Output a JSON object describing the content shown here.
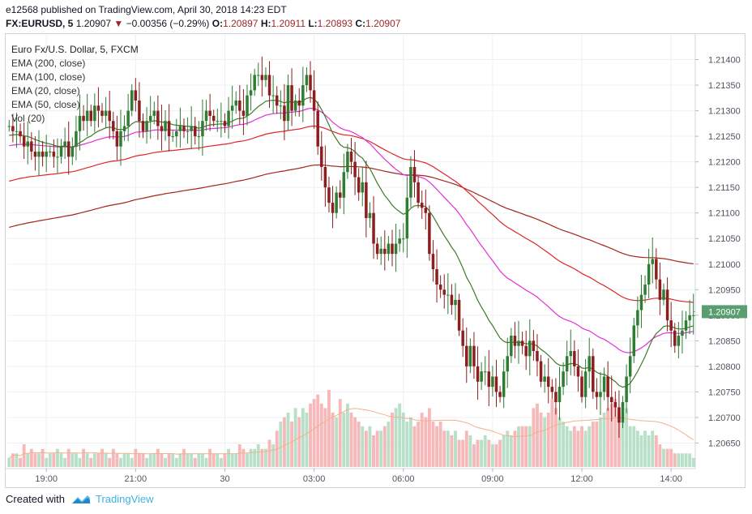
{
  "header": {
    "publisher_line": "e12568 published on TradingView.com, April 30, 2018 14:23 EDT",
    "symbol": "FX:EURUSD, 5",
    "last": "1.20907",
    "change_arrow": "▼",
    "change": "−0.00356 (−0.29%)",
    "o_label": "O:",
    "o": "1.20897",
    "h_label": "H:",
    "h": "1.20911",
    "l_label": "L:",
    "l": "1.20893",
    "c_label": "C:",
    "c": "1.20907"
  },
  "legend": {
    "title": "Euro Fx/U.S. Dollar, 5, FXCM",
    "items": [
      "EMA (200, close)",
      "EMA (100, close)",
      "EMA (20, close)",
      "EMA (50, close)",
      "Vol (20)"
    ]
  },
  "footer": {
    "created_with": "Created with",
    "brand": "TradingView"
  },
  "colors": {
    "up": "#2e7d32",
    "down": "#8b1e1e",
    "ema200": "#a5261a",
    "ema100": "#e0262a",
    "ema20": "#3f7a2a",
    "ema50": "#e52fd8",
    "vol_up": "#b8e0c8",
    "vol_down": "#f6b8b8",
    "vol_ma": "#f3b08c",
    "price_tag": "#5a9e6f"
  },
  "chart_data": {
    "type": "candlestick",
    "ylim": [
      1.206,
      1.2145
    ],
    "y_ticks": [
      "1.21400",
      "1.21350",
      "1.21300",
      "1.21250",
      "1.21200",
      "1.21150",
      "1.21100",
      "1.21050",
      "1.21000",
      "1.20950",
      "1.20900",
      "1.20850",
      "1.20800",
      "1.20750",
      "1.20700",
      "1.20650"
    ],
    "y_tick_values": [
      1.214,
      1.2135,
      1.213,
      1.2125,
      1.212,
      1.2115,
      1.211,
      1.2105,
      1.21,
      1.2095,
      1.209,
      1.2085,
      1.208,
      1.2075,
      1.207,
      1.2065
    ],
    "x_ticks": [
      {
        "label": "19:00",
        "bar": 10
      },
      {
        "label": "21:00",
        "bar": 34
      },
      {
        "label": "30",
        "bar": 58
      },
      {
        "label": "03:00",
        "bar": 82
      },
      {
        "label": "06:00",
        "bar": 106
      },
      {
        "label": "09:00",
        "bar": 130
      },
      {
        "label": "12:00",
        "bar": 154
      },
      {
        "label": "14:00",
        "bar": 178
      }
    ],
    "last_price": "1.20907",
    "last_value": 1.20907,
    "bar_count": 185,
    "close": [
      1.2127,
      1.2126,
      1.2126,
      1.2125,
      1.2123,
      1.2124,
      1.2122,
      1.2121,
      1.2122,
      1.2121,
      1.2122,
      1.2122,
      1.2121,
      1.2121,
      1.2123,
      1.2124,
      1.2121,
      1.2123,
      1.2126,
      1.2129,
      1.2128,
      1.213,
      1.2128,
      1.2131,
      1.213,
      1.2129,
      1.213,
      1.2128,
      1.2126,
      1.2123,
      1.2126,
      1.2127,
      1.213,
      1.2134,
      1.2132,
      1.2128,
      1.2126,
      1.2128,
      1.2129,
      1.213,
      1.2127,
      1.2126,
      1.2128,
      1.2125,
      1.2125,
      1.2126,
      1.2127,
      1.2126,
      1.2126,
      1.2127,
      1.2125,
      1.2125,
      1.2128,
      1.213,
      1.2129,
      1.2128,
      1.2128,
      1.2128,
      1.2127,
      1.213,
      1.2131,
      1.2132,
      1.213,
      1.2129,
      1.2133,
      1.2134,
      1.2137,
      1.2137,
      1.2136,
      1.2137,
      1.2133,
      1.2133,
      1.2131,
      1.2131,
      1.2128,
      1.2135,
      1.213,
      1.2132,
      1.2131,
      1.2135,
      1.2137,
      1.2134,
      1.213,
      1.2123,
      1.2119,
      1.2115,
      1.2112,
      1.211,
      1.2114,
      1.2113,
      1.2118,
      1.2122,
      1.212,
      1.2117,
      1.2114,
      1.2116,
      1.2109,
      1.211,
      1.2104,
      1.2102,
      1.2103,
      1.2102,
      1.2104,
      1.2102,
      1.2104,
      1.2105,
      1.2105,
      1.2113,
      1.2119,
      1.2116,
      1.2112,
      1.2111,
      1.211,
      1.2102,
      1.2099,
      1.2096,
      1.2095,
      1.2094,
      1.2094,
      1.2092,
      1.2093,
      1.2087,
      1.2084,
      1.208,
      1.2084,
      1.208,
      1.2077,
      1.2079,
      1.2079,
      1.2076,
      1.2078,
      1.2075,
      1.2074,
      1.2079,
      1.2082,
      1.2086,
      1.2084,
      1.2085,
      1.2084,
      1.2082,
      1.2085,
      1.2083,
      1.2081,
      1.2077,
      1.2078,
      1.2076,
      1.2075,
      1.2073,
      1.2076,
      1.2079,
      1.2082,
      1.2083,
      1.208,
      1.2078,
      1.2074,
      1.2079,
      1.2082,
      1.2075,
      1.2074,
      1.2075,
      1.2078,
      1.2074,
      1.2073,
      1.2072,
      1.2069,
      1.2073,
      1.2078,
      1.2082,
      1.2088,
      1.2091,
      1.2094,
      1.2096,
      1.21,
      1.2101,
      1.2097,
      1.2093,
      1.2095,
      1.2089,
      1.2087,
      1.2084,
      1.2086,
      1.2087,
      1.2089,
      1.209,
      1.209
    ],
    "volume": [
      2,
      3,
      3,
      2,
      5,
      3,
      4,
      3,
      3,
      4,
      2,
      3,
      3,
      4,
      3,
      2,
      4,
      3,
      3,
      2,
      4,
      3,
      2,
      3,
      3,
      4,
      3,
      2,
      4,
      3,
      2,
      3,
      3,
      2,
      4,
      3,
      3,
      2,
      3,
      3,
      4,
      3,
      2,
      3,
      3,
      2,
      3,
      4,
      3,
      3,
      2,
      3,
      3,
      2,
      4,
      3,
      3,
      2,
      3,
      4,
      3,
      3,
      5,
      4,
      3,
      4,
      4,
      5,
      4,
      4,
      6,
      5,
      8,
      10,
      11,
      12,
      10,
      13,
      11,
      13,
      12,
      14,
      15,
      16,
      14,
      13,
      17,
      12,
      11,
      15,
      12,
      14,
      12,
      11,
      10,
      9,
      8,
      9,
      7,
      8,
      8,
      9,
      10,
      12,
      13,
      14,
      12,
      10,
      11,
      9,
      10,
      12,
      11,
      13,
      10,
      9,
      10,
      8,
      8,
      7,
      8,
      6,
      6,
      8,
      7,
      5,
      6,
      6,
      7,
      6,
      5,
      5,
      6,
      7,
      8,
      7,
      8,
      9,
      9,
      9,
      9,
      13,
      14,
      12,
      11,
      12,
      15,
      13,
      11,
      10,
      9,
      8,
      9,
      8,
      9,
      8,
      9,
      10,
      10,
      11,
      12,
      13,
      14,
      15,
      12,
      10,
      13,
      9,
      9,
      8,
      7,
      8,
      7,
      8,
      7,
      5,
      4,
      4,
      4,
      3,
      3,
      3,
      3,
      3,
      2
    ]
  }
}
